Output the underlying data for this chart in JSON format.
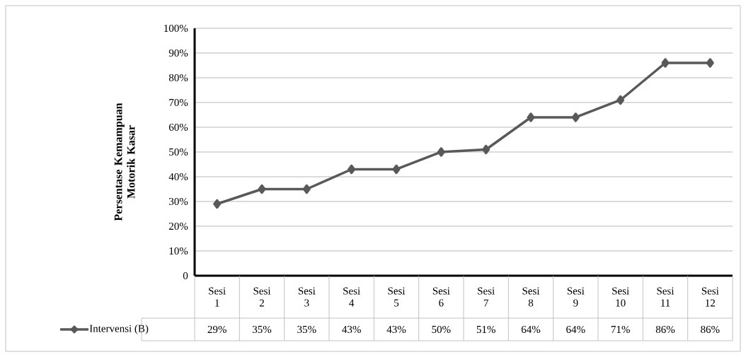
{
  "chart_data": {
    "type": "line",
    "ylabel": "Persentase Kemampuan Motorik Kasar",
    "categories": [
      "Sesi 1",
      "Sesi 2",
      "Sesi 3",
      "Sesi 4",
      "Sesi 5",
      "Sesi 6",
      "Sesi 7",
      "Sesi 8",
      "Sesi 9",
      "Sesi 10",
      "Sesi 11",
      "Sesi 12"
    ],
    "series": [
      {
        "name": "Intervensi (B)",
        "color": "#595959",
        "values": [
          29,
          35,
          35,
          43,
          43,
          50,
          51,
          64,
          64,
          71,
          86,
          86
        ],
        "value_labels": [
          "29%",
          "35%",
          "35%",
          "43%",
          "43%",
          "50%",
          "51%",
          "64%",
          "64%",
          "71%",
          "86%",
          "86%"
        ]
      }
    ],
    "ylim": [
      0,
      100
    ],
    "yticks": [
      0,
      {
        "value": 10,
        "label": "10%"
      },
      {
        "value": 20,
        "label": "20%"
      },
      {
        "value": 30,
        "label": "30%"
      },
      {
        "value": 40,
        "label": "40%"
      },
      {
        "value": 50,
        "label": "50%"
      },
      {
        "value": 60,
        "label": "60%"
      },
      {
        "value": 70,
        "label": "70%"
      },
      {
        "value": 80,
        "label": "80%"
      },
      {
        "value": 90,
        "label": "90%"
      },
      {
        "value": 100,
        "label": "100%"
      }
    ],
    "grid": "y",
    "legend": "bottom",
    "marker": "diamond",
    "line_style": "solid"
  }
}
